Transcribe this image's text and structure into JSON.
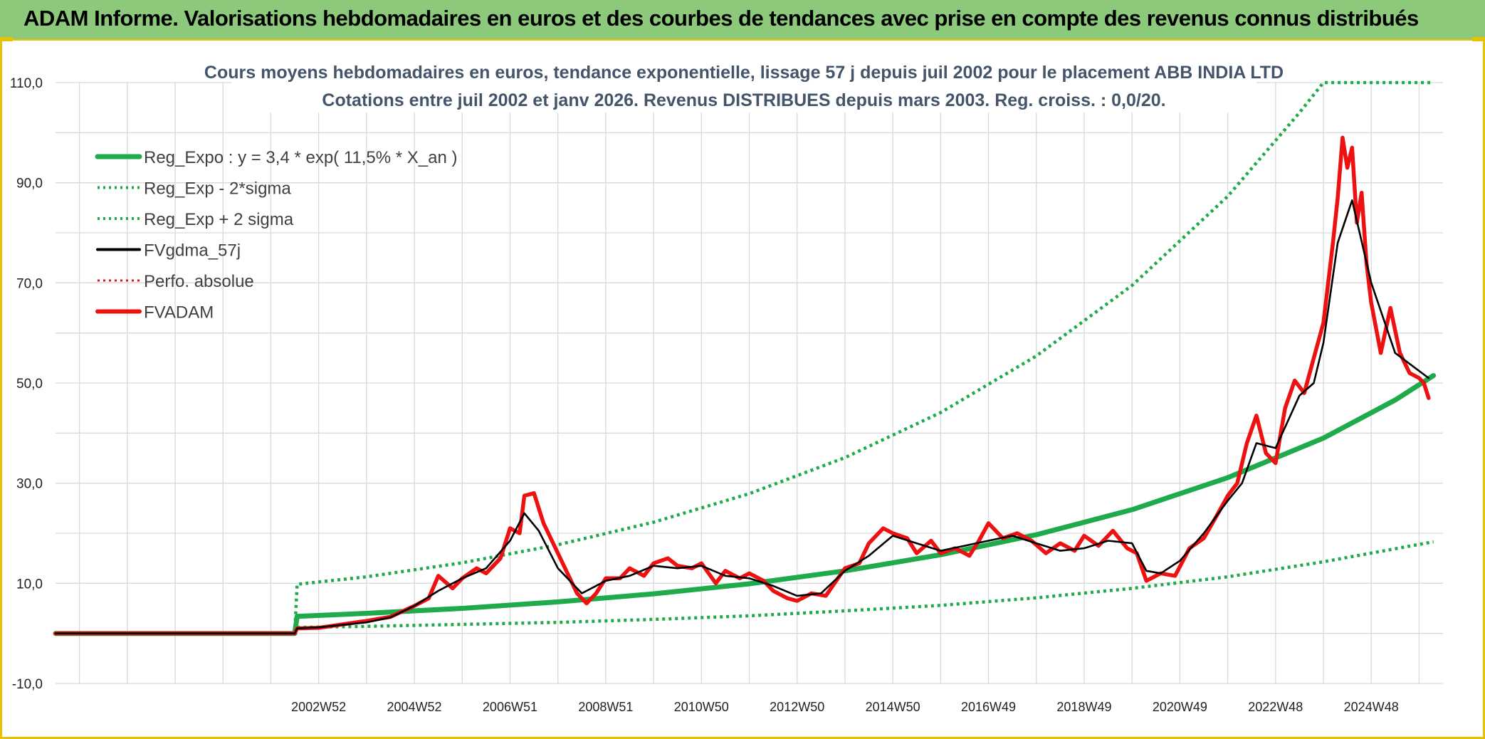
{
  "banner": {
    "title": "ADAM Informe. Valorisations hebdomadaires en euros et des courbes de tendances avec prise en compte des revenus connus distribués"
  },
  "colors": {
    "banner_bg": "#8cc97a",
    "border": "#e6c200",
    "reg_expo": "#1faa4b",
    "fvgdma": "#000000",
    "fvadam": "#ee1111",
    "title_text": "#44546a"
  },
  "chart_data": {
    "type": "line",
    "title_line1": "Cours moyens hebdomadaires en euros, tendance exponentielle, lissage 57 j depuis juil 2002 pour le placement ABB INDIA LTD",
    "title_line2": "Cotations entre juil 2002 et janv 2026. Revenus DISTRIBUES depuis mars 2003. Reg. croiss. : 0,0/20.",
    "x_range": [
      1997.5,
      2026.5
    ],
    "ylim": [
      -10,
      110
    ],
    "y_ticks": [
      -10,
      10,
      30,
      50,
      70,
      90,
      110
    ],
    "y_tick_labels": [
      "-10,0",
      "10,0",
      "30,0",
      "50,0",
      "70,0",
      "90,0",
      "110,0"
    ],
    "x_ticks": [
      2003,
      2005,
      2007,
      2009,
      2011,
      2013,
      2015,
      2017,
      2019,
      2021,
      2023,
      2025
    ],
    "x_tick_labels": [
      "2002W52",
      "2004W52",
      "2006W51",
      "2008W51",
      "2010W50",
      "2012W50",
      "2014W50",
      "2016W49",
      "2018W49",
      "2020W49",
      "2022W48",
      "2024W48"
    ],
    "grid": true,
    "legend_position": "top-left",
    "series": [
      {
        "name": "Reg_Expo : y = 3,4 * exp( 11,5% *  X_an )",
        "style": "solid",
        "color": "#1faa4b",
        "x": [
          1997.5,
          2002.5,
          2002.55,
          2004,
          2006,
          2008,
          2010,
          2012,
          2014,
          2016,
          2018,
          2020,
          2022,
          2024,
          2025.5,
          2026.3
        ],
        "y": [
          0,
          0,
          3.4,
          4.0,
          5.0,
          6.3,
          7.9,
          9.9,
          12.5,
          15.7,
          19.7,
          24.7,
          31.1,
          39.0,
          46.6,
          51.5
        ]
      },
      {
        "name": "Reg_Exp - 2*sigma",
        "style": "dotted",
        "color": "#1faa4b",
        "x": [
          2002.55,
          2004,
          2006,
          2008,
          2010,
          2012,
          2014,
          2016,
          2018,
          2020,
          2022,
          2024,
          2026.3
        ],
        "y": [
          1.2,
          1.4,
          1.8,
          2.2,
          2.8,
          3.5,
          4.5,
          5.6,
          7.1,
          9.0,
          11.3,
          14.3,
          18.3
        ]
      },
      {
        "name": "Reg_Exp + 2 sigma",
        "style": "dotted",
        "color": "#1faa4b",
        "x": [
          2002.5,
          2002.55,
          2004,
          2006,
          2008,
          2010,
          2012,
          2014,
          2016,
          2018,
          2020,
          2022,
          2023.5,
          2024,
          2026.3
        ],
        "y": [
          0,
          9.8,
          11.3,
          14.1,
          17.7,
          22.2,
          27.9,
          35.1,
          44.1,
          55.4,
          69.5,
          87.3,
          104.0,
          110,
          110
        ]
      },
      {
        "name": "FVgdma_57j",
        "style": "solid",
        "color": "#000000",
        "x": [
          1997.5,
          2002.5,
          2002.55,
          2003,
          2004,
          2004.5,
          2005,
          2005.5,
          2006,
          2006.5,
          2007,
          2007.3,
          2007.6,
          2008,
          2008.5,
          2009,
          2009.5,
          2010,
          2010.5,
          2011,
          2011.5,
          2012,
          2012.5,
          2013,
          2013.5,
          2014,
          2014.5,
          2015,
          2015.5,
          2016,
          2016.5,
          2017,
          2017.5,
          2018,
          2018.5,
          2019,
          2019.5,
          2020,
          2020.3,
          2020.6,
          2021,
          2021.5,
          2022,
          2022.3,
          2022.6,
          2023,
          2023.5,
          2023.8,
          2024,
          2024.3,
          2024.6,
          2025,
          2025.5,
          2026.2
        ],
        "y": [
          0,
          0,
          1.0,
          1.2,
          2.2,
          3.2,
          5.5,
          8.5,
          11.0,
          13.0,
          18.5,
          24.0,
          20.5,
          13.0,
          8.0,
          10.5,
          11.5,
          13.5,
          13.0,
          13.5,
          11.5,
          11.0,
          9.5,
          7.5,
          8.0,
          12.5,
          15.5,
          19.5,
          18.0,
          16.5,
          17.5,
          18.5,
          19.5,
          18.0,
          16.5,
          17.0,
          18.5,
          18.0,
          12.5,
          12.0,
          14.5,
          20.0,
          26.5,
          30.0,
          38.0,
          37.0,
          47.5,
          50.0,
          58.0,
          78.0,
          86.5,
          70.0,
          56.0,
          51.0
        ]
      },
      {
        "name": "Perfo. absolue",
        "style": "dotted",
        "color": "#ee1111",
        "x": [],
        "y": []
      },
      {
        "name": "FVADAM",
        "style": "solid",
        "color": "#ee1111",
        "x": [
          1997.5,
          2002.5,
          2002.55,
          2003,
          2003.5,
          2004,
          2004.5,
          2005,
          2005.3,
          2005.5,
          2005.8,
          2006,
          2006.3,
          2006.5,
          2006.8,
          2007,
          2007.2,
          2007.3,
          2007.5,
          2007.7,
          2007.9,
          2008.1,
          2008.4,
          2008.6,
          2008.8,
          2009,
          2009.3,
          2009.5,
          2009.8,
          2010,
          2010.3,
          2010.5,
          2010.8,
          2011,
          2011.3,
          2011.5,
          2011.8,
          2012,
          2012.3,
          2012.5,
          2012.8,
          2013,
          2013.3,
          2013.6,
          2014,
          2014.3,
          2014.5,
          2014.8,
          2015,
          2015.3,
          2015.5,
          2015.8,
          2016,
          2016.3,
          2016.6,
          2016.8,
          2017,
          2017.3,
          2017.6,
          2017.9,
          2018.2,
          2018.5,
          2018.8,
          2019,
          2019.3,
          2019.6,
          2019.9,
          2020.1,
          2020.3,
          2020.6,
          2020.9,
          2021.2,
          2021.5,
          2021.8,
          2022,
          2022.2,
          2022.4,
          2022.6,
          2022.8,
          2023,
          2023.2,
          2023.4,
          2023.6,
          2023.8,
          2024,
          2024.2,
          2024.3,
          2024.4,
          2024.5,
          2024.6,
          2024.7,
          2024.8,
          2024.9,
          2025,
          2025.2,
          2025.4,
          2025.6,
          2025.8,
          2026,
          2026.1,
          2026.2
        ],
        "y": [
          0,
          0,
          1.0,
          1.1,
          1.8,
          2.5,
          3.3,
          5.5,
          7.0,
          11.5,
          9.0,
          11.0,
          13.0,
          12.0,
          15.0,
          21.0,
          20.0,
          27.5,
          28.0,
          22.0,
          18.0,
          14.0,
          8.0,
          6.0,
          8.0,
          11.0,
          11.0,
          13.0,
          11.5,
          14.0,
          15.0,
          13.5,
          13.0,
          14.0,
          10.0,
          12.5,
          11.0,
          12.0,
          10.5,
          8.5,
          7.0,
          6.5,
          8.0,
          7.5,
          13.0,
          14.0,
          18.0,
          21.0,
          20.0,
          19.0,
          16.0,
          18.5,
          16.0,
          17.0,
          15.5,
          18.5,
          22.0,
          19.0,
          20.0,
          18.5,
          16.0,
          18.0,
          16.5,
          19.5,
          17.5,
          20.5,
          17.0,
          16.0,
          10.5,
          12.0,
          11.5,
          17.0,
          19.0,
          24.0,
          27.5,
          30.0,
          38.0,
          43.5,
          36.0,
          34.0,
          45.0,
          50.5,
          48.0,
          55.0,
          62.0,
          78.0,
          87.0,
          99.0,
          93.0,
          97.0,
          82.0,
          88.0,
          74.0,
          66.0,
          56.0,
          65.0,
          56.0,
          52.0,
          51.0,
          50.0,
          47.0
        ]
      }
    ]
  }
}
